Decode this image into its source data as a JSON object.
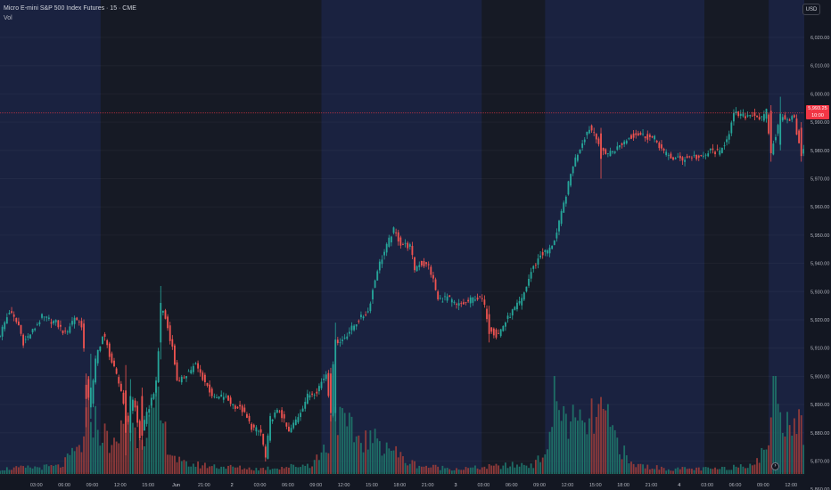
{
  "legend": {
    "symbol_line": "Micro E-mini S&P 500 Index Futures · 15 · CME",
    "volume_label": "Vol"
  },
  "currency_button": "USD",
  "last_price_tag": {
    "price": "5,993.25",
    "countdown": "10:00"
  },
  "goto_realtime_icon": "chevron-right-icon",
  "colors": {
    "background": "#131722",
    "session_band": "#1a2240",
    "up": "#26a69a",
    "down": "#ef5350",
    "up_vol": "#1e6e66",
    "down_vol": "#8f3a3a",
    "price_line": "#f23645",
    "axis_text": "#b2b5be"
  },
  "chart_data": {
    "type": "candlestick",
    "title": "Micro E-mini S&P 500 Index Futures · 15 · CME",
    "ylabel": "USD",
    "ylim": [
      5856,
      6027
    ],
    "y_ticks": [
      "6,020.00",
      "6,010.00",
      "6,000.00",
      "5,990.00",
      "5,980.00",
      "5,970.00",
      "5,960.00",
      "5,950.00",
      "5,940.00",
      "5,930.00",
      "5,920.00",
      "5,910.00",
      "5,900.00",
      "5,890.00",
      "5,880.00",
      "5,870.00",
      "5,860.00"
    ],
    "x_ticks": [
      "03:00",
      "06:00",
      "09:00",
      "12:00",
      "15:00",
      "Jun",
      "21:00",
      "2",
      "03:00",
      "06:00",
      "09:00",
      "12:00",
      "15:00",
      "18:00",
      "21:00",
      "3",
      "03:00",
      "06:00",
      "09:00",
      "12:00",
      "15:00",
      "18:00",
      "21:00",
      "4",
      "03:00",
      "06:00",
      "09:00",
      "12:00",
      "15:00",
      "18:0"
    ],
    "last_price": 5993.25,
    "session_bands_hours": [
      [
        -1.5,
        9.3
      ],
      [
        33.0,
        50.2
      ],
      [
        57.0,
        74.1
      ],
      [
        81.0,
        98.8
      ]
    ],
    "anchors": [
      [
        -1.5,
        5915
      ],
      [
        -0.5,
        5923
      ],
      [
        0.5,
        5918
      ],
      [
        1.0,
        5912
      ],
      [
        2.0,
        5916
      ],
      [
        3.0,
        5921
      ],
      [
        4.5,
        5919
      ],
      [
        5.5,
        5915
      ],
      [
        6.5,
        5921
      ],
      [
        7.3,
        5918
      ],
      [
        7.8,
        5897
      ],
      [
        8.2,
        5889
      ],
      [
        8.8,
        5907
      ],
      [
        9.6,
        5915
      ],
      [
        10.5,
        5905
      ],
      [
        11.5,
        5895
      ],
      [
        12.2,
        5882
      ],
      [
        12.8,
        5893
      ],
      [
        13.5,
        5878
      ],
      [
        14.3,
        5887
      ],
      [
        15.3,
        5898
      ],
      [
        15.8,
        5925
      ],
      [
        16.3,
        5920
      ],
      [
        17.0,
        5910
      ],
      [
        17.6,
        5897
      ],
      [
        18.5,
        5901
      ],
      [
        19.5,
        5904
      ],
      [
        20.5,
        5898
      ],
      [
        21.5,
        5892
      ],
      [
        22.5,
        5893
      ],
      [
        23.5,
        5890
      ],
      [
        24.5,
        5888
      ],
      [
        25.5,
        5882
      ],
      [
        26.5,
        5880
      ],
      [
        27.0,
        5871
      ],
      [
        27.5,
        5885
      ],
      [
        28.5,
        5888
      ],
      [
        29.5,
        5880
      ],
      [
        30.5,
        5886
      ],
      [
        31.5,
        5893
      ],
      [
        32.5,
        5895
      ],
      [
        33.5,
        5901
      ],
      [
        34.0,
        5887
      ],
      [
        34.4,
        5913
      ],
      [
        35.0,
        5912
      ],
      [
        36.0,
        5916
      ],
      [
        37.0,
        5920
      ],
      [
        38.0,
        5923
      ],
      [
        39.0,
        5938
      ],
      [
        40.0,
        5946
      ],
      [
        40.7,
        5952
      ],
      [
        41.5,
        5947
      ],
      [
        42.5,
        5946
      ],
      [
        43.0,
        5938
      ],
      [
        43.5,
        5940
      ],
      [
        44.5,
        5939
      ],
      [
        45.0,
        5934
      ],
      [
        45.5,
        5927
      ],
      [
        46.5,
        5928
      ],
      [
        47.5,
        5925
      ],
      [
        48.5,
        5926
      ],
      [
        49.5,
        5928
      ],
      [
        50.3,
        5927
      ],
      [
        51.0,
        5918
      ],
      [
        51.8,
        5914
      ],
      [
        52.5,
        5918
      ],
      [
        53.5,
        5923
      ],
      [
        54.5,
        5927
      ],
      [
        55.5,
        5937
      ],
      [
        56.5,
        5943
      ],
      [
        57.5,
        5945
      ],
      [
        58.2,
        5950
      ],
      [
        59.0,
        5961
      ],
      [
        60.0,
        5975
      ],
      [
        61.0,
        5983
      ],
      [
        61.7,
        5988
      ],
      [
        62.4,
        5986
      ],
      [
        63.0,
        5980
      ],
      [
        63.8,
        5979
      ],
      [
        64.8,
        5981
      ],
      [
        65.8,
        5984
      ],
      [
        66.8,
        5986
      ],
      [
        67.8,
        5985
      ],
      [
        68.8,
        5984
      ],
      [
        69.8,
        5979
      ],
      [
        70.8,
        5977
      ],
      [
        71.8,
        5977
      ],
      [
        72.8,
        5978
      ],
      [
        73.8,
        5977
      ],
      [
        74.8,
        5980
      ],
      [
        75.8,
        5979
      ],
      [
        76.8,
        5987
      ],
      [
        77.3,
        5993
      ],
      [
        78.3,
        5992
      ],
      [
        79.3,
        5993
      ],
      [
        80.3,
        5991
      ],
      [
        80.8,
        5994
      ],
      [
        81.2,
        5979
      ],
      [
        81.8,
        5986
      ],
      [
        82.4,
        5993
      ],
      [
        83.0,
        5991
      ],
      [
        83.7,
        5992
      ],
      [
        84.2,
        5982
      ],
      [
        84.6,
        5979
      ],
      [
        85.2,
        5988
      ],
      [
        85.8,
        5992
      ],
      [
        86.3,
        5993.25
      ]
    ],
    "big_bars": [
      [
        7.8,
        5897,
        5892,
        5901,
        5882
      ],
      [
        8.2,
        5889,
        5896,
        5908,
        5885
      ],
      [
        11.9,
        5895,
        5880,
        5904,
        5872
      ],
      [
        12.4,
        5880,
        5893,
        5899,
        5877
      ],
      [
        13.8,
        5893,
        5879,
        5896,
        5874
      ],
      [
        15.8,
        5912,
        5926,
        5932,
        5906
      ],
      [
        34.0,
        5901,
        5887,
        5903,
        5884
      ],
      [
        34.4,
        5887,
        5913,
        5919,
        5884
      ],
      [
        51.0,
        5922,
        5915,
        5925,
        5912
      ],
      [
        62.9,
        5986,
        5977,
        5988,
        5970
      ],
      [
        81.2,
        5994,
        5979,
        5996,
        5976
      ],
      [
        82.3,
        5982,
        5993,
        5999,
        5980
      ],
      [
        84.5,
        5988,
        5978,
        5990,
        5976
      ]
    ],
    "volume_profile": [
      [
        -1.5,
        0.02
      ],
      [
        5.0,
        0.03
      ],
      [
        7.5,
        0.12
      ],
      [
        8.0,
        0.28
      ],
      [
        9.0,
        0.18
      ],
      [
        10.0,
        0.14
      ],
      [
        11.0,
        0.1
      ],
      [
        12.0,
        0.25
      ],
      [
        13.0,
        0.16
      ],
      [
        14.5,
        0.2
      ],
      [
        15.5,
        0.25
      ],
      [
        16.0,
        0.18
      ],
      [
        17.0,
        0.08
      ],
      [
        18.0,
        0.04
      ],
      [
        22.0,
        0.03
      ],
      [
        26.0,
        0.02
      ],
      [
        30.0,
        0.03
      ],
      [
        32.0,
        0.04
      ],
      [
        33.8,
        0.12
      ],
      [
        34.2,
        0.38
      ],
      [
        35.0,
        0.2
      ],
      [
        37.0,
        0.14
      ],
      [
        40.0,
        0.12
      ],
      [
        42.0,
        0.05
      ],
      [
        44.0,
        0.03
      ],
      [
        48.0,
        0.02
      ],
      [
        52.0,
        0.03
      ],
      [
        56.0,
        0.04
      ],
      [
        57.5,
        0.12
      ],
      [
        58.0,
        0.33
      ],
      [
        59.0,
        0.22
      ],
      [
        61.0,
        0.18
      ],
      [
        63.0,
        0.24
      ],
      [
        65.0,
        0.12
      ],
      [
        66.0,
        0.04
      ],
      [
        70.0,
        0.02
      ],
      [
        76.0,
        0.02
      ],
      [
        80.0,
        0.05
      ],
      [
        81.0,
        0.15
      ],
      [
        81.5,
        0.37
      ],
      [
        82.5,
        0.25
      ],
      [
        84.0,
        0.2
      ],
      [
        85.5,
        0.18
      ],
      [
        86.3,
        0.14
      ]
    ]
  }
}
